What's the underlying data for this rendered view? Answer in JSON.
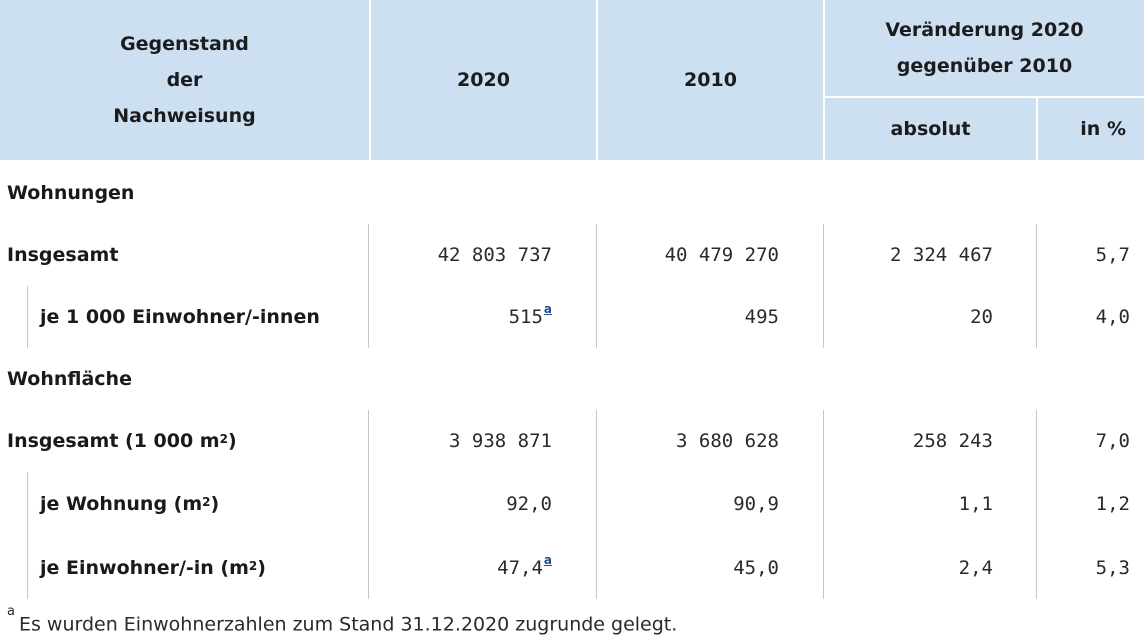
{
  "header": {
    "subject": [
      "Gegenstand",
      "der",
      "Nachweisung"
    ],
    "col_2020": "2020",
    "col_2010": "2010",
    "change": [
      "Veränderung 2020",
      "gegenüber 2010"
    ],
    "change_abs": "absolut",
    "change_pct": "in %"
  },
  "sections": {
    "wohnungen": "Wohnungen",
    "wohnflaeche": "Wohnfläche"
  },
  "rows": [
    {
      "label": "Insgesamt",
      "v2020": "42 803 737",
      "v2010": "40 479 270",
      "abs": "2 324 467",
      "pct": "5,7"
    },
    {
      "label": "je 1 000 Einwohner/-innen",
      "v2020": "515",
      "footnote": "a",
      "v2010": "495",
      "abs": "20",
      "pct": "4,0"
    },
    {
      "label": "Insgesamt (1 000 m",
      "unit_sup": "2",
      "label_end": ")",
      "v2020": "3 938 871",
      "v2010": "3 680 628",
      "abs": "258 243",
      "pct": "7,0"
    },
    {
      "label": "je Wohnung (m",
      "unit_sup": "2",
      "label_end": ")",
      "v2020": "92,0",
      "v2010": "90,9",
      "abs": "1,1",
      "pct": "1,2"
    },
    {
      "label": "je Einwohner/-in (m",
      "unit_sup": "2",
      "label_end": ")",
      "v2020": "47,4",
      "footnote": "a",
      "v2010": "45,0",
      "abs": "2,4",
      "pct": "5,3"
    }
  ],
  "footnote": {
    "marker": "a",
    "text": "Es wurden Einwohnerzahlen zum Stand 31.12.2020 zugrunde gelegt."
  },
  "colors": {
    "header_bg": "#cde0f2",
    "footnote_link": "#1f4e8c"
  }
}
